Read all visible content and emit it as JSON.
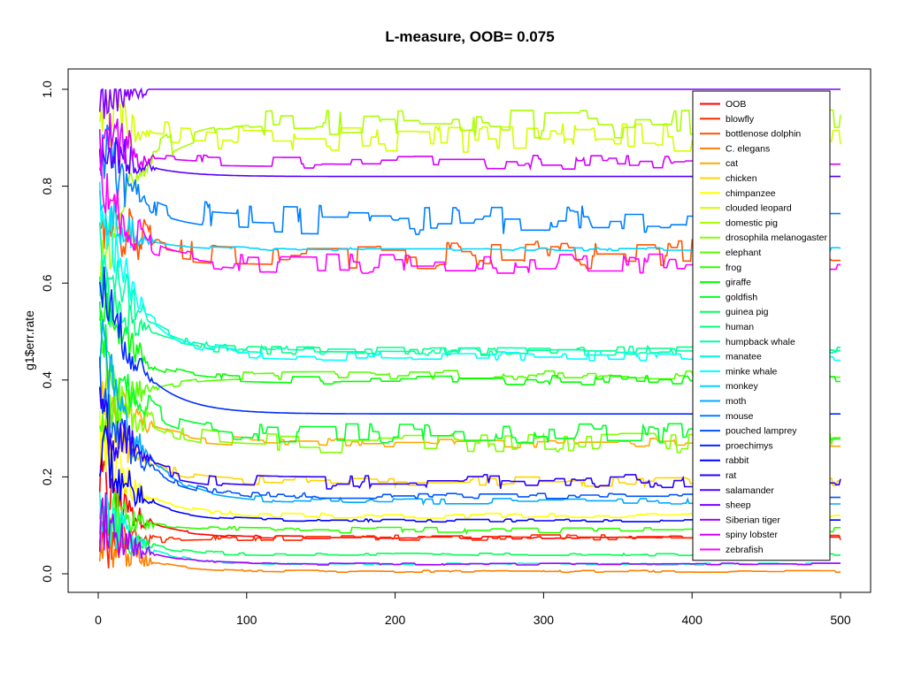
{
  "chart_data": {
    "type": "line",
    "title": "L-measure, OOB= 0.075",
    "xlabel": "",
    "ylabel": "g1$err.rate",
    "xlim": [
      0,
      500
    ],
    "ylim": [
      0.0,
      1.0
    ],
    "xticks": [
      "0",
      "100",
      "200",
      "300",
      "400",
      "500"
    ],
    "yticks": [
      "0.0",
      "0.2",
      "0.4",
      "0.6",
      "0.8",
      "1.0"
    ],
    "grid": false,
    "legend_position": "top-right",
    "series": [
      {
        "name": "OOB",
        "color": "#FF0000",
        "start": 0.2,
        "end": 0.075,
        "noise": 0.003
      },
      {
        "name": "blowfly",
        "color": "#FF2A00",
        "start": 0.05,
        "end": 0.075,
        "noise": 0.006
      },
      {
        "name": "bottlenose dolphin",
        "color": "#FF5500",
        "start": 0.75,
        "end": 0.66,
        "noise": 0.03
      },
      {
        "name": "C. elegans",
        "color": "#FF7F00",
        "start": 0.1,
        "end": 0.005,
        "noise": 0.002
      },
      {
        "name": "cat",
        "color": "#FFAA00",
        "start": 0.4,
        "end": 0.27,
        "noise": 0.01
      },
      {
        "name": "chicken",
        "color": "#FFD400",
        "start": 0.35,
        "end": 0.19,
        "noise": 0.01
      },
      {
        "name": "chimpanzee",
        "color": "#FFFF00",
        "start": 0.28,
        "end": 0.12,
        "noise": 0.005
      },
      {
        "name": "clouded leopard",
        "color": "#D4FF00",
        "start": 0.95,
        "end": 0.9,
        "noise": 0.03
      },
      {
        "name": "domestic pig",
        "color": "#AAFF00",
        "start": 0.6,
        "end": 0.93,
        "noise": 0.03
      },
      {
        "name": "drosophila melanogaster",
        "color": "#80FF00",
        "start": 0.45,
        "end": 0.27,
        "noise": 0.02
      },
      {
        "name": "elephant",
        "color": "#55FF00",
        "start": 0.3,
        "end": 0.41,
        "noise": 0.01
      },
      {
        "name": "frog",
        "color": "#2AFF00",
        "start": 0.15,
        "end": 0.09,
        "noise": 0.006
      },
      {
        "name": "giraffe",
        "color": "#00FF00",
        "start": 0.55,
        "end": 0.4,
        "noise": 0.01
      },
      {
        "name": "goldfish",
        "color": "#00FF2A",
        "start": 0.5,
        "end": 0.29,
        "noise": 0.02
      },
      {
        "name": "guinea pig",
        "color": "#00FF55",
        "start": 0.12,
        "end": 0.04,
        "noise": 0.003
      },
      {
        "name": "human",
        "color": "#00FF80",
        "start": 0.6,
        "end": 0.46,
        "noise": 0.008
      },
      {
        "name": "humpback whale",
        "color": "#00FFAA",
        "start": 0.7,
        "end": 0.46,
        "noise": 0.01
      },
      {
        "name": "manatee",
        "color": "#00FFD4",
        "start": 0.15,
        "end": 0.02,
        "noise": 0.002
      },
      {
        "name": "minke whale",
        "color": "#00FFFF",
        "start": 0.8,
        "end": 0.45,
        "noise": 0.01
      },
      {
        "name": "monkey",
        "color": "#00D4FF",
        "start": 0.75,
        "end": 0.67,
        "noise": 0.003
      },
      {
        "name": "moth",
        "color": "#00AAFF",
        "start": 0.5,
        "end": 0.15,
        "noise": 0.006
      },
      {
        "name": "mouse",
        "color": "#0080FF",
        "start": 0.9,
        "end": 0.73,
        "noise": 0.03
      },
      {
        "name": "pouched lamprey",
        "color": "#0055FF",
        "start": 0.4,
        "end": 0.16,
        "noise": 0.006
      },
      {
        "name": "proechimys",
        "color": "#002AFF",
        "start": 0.63,
        "end": 0.33,
        "noise": 0.0
      },
      {
        "name": "rabbit",
        "color": "#0000FF",
        "start": 0.27,
        "end": 0.11,
        "noise": 0.003
      },
      {
        "name": "rat",
        "color": "#2A00FF",
        "start": 0.35,
        "end": 0.19,
        "noise": 0.015
      },
      {
        "name": "salamander",
        "color": "#5500FF",
        "start": 0.9,
        "end": 0.82,
        "noise": 0.0
      },
      {
        "name": "sheep",
        "color": "#7F00FF",
        "start": 1.0,
        "end": 1.0,
        "noise": 0.0
      },
      {
        "name": "Siberian tiger",
        "color": "#AA00FF",
        "start": 0.12,
        "end": 0.02,
        "noise": 0.002
      },
      {
        "name": "spiny lobster",
        "color": "#D400FF",
        "start": 0.9,
        "end": 0.85,
        "noise": 0.015
      },
      {
        "name": "zebrafish",
        "color": "#FF00FF",
        "start": 0.8,
        "end": 0.64,
        "noise": 0.02
      }
    ]
  }
}
